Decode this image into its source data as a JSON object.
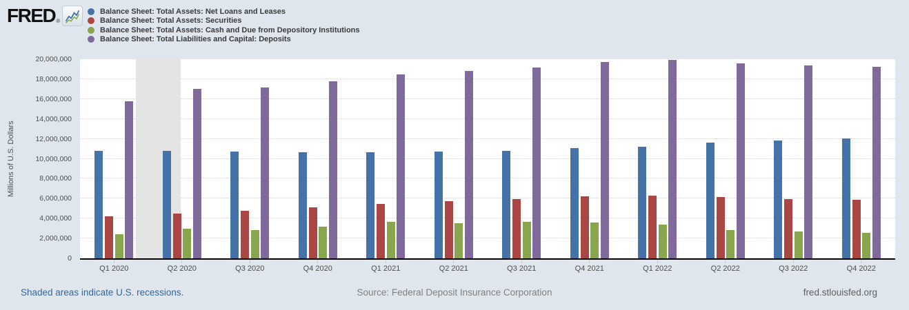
{
  "brand": {
    "logo_text": "FRED",
    "registered_mark": "®"
  },
  "colors": {
    "background": "#dfe6ed",
    "plot_background": "#ffffff",
    "recession_band": "#e4e4e4",
    "gridline": "#e6e6e6",
    "axis_line": "#000000",
    "link": "#336699"
  },
  "chart_data": {
    "type": "bar",
    "title": "",
    "xlabel": "",
    "ylabel": "Millions of U.S. Dollars",
    "ylim": [
      0,
      20000000
    ],
    "y_tick_interval": 2000000,
    "y_tick_labels": [
      "0",
      "2,000,000",
      "4,000,000",
      "6,000,000",
      "8,000,000",
      "10,000,000",
      "12,000,000",
      "14,000,000",
      "16,000,000",
      "18,000,000",
      "20,000,000"
    ],
    "grid": true,
    "legend_position": "top-left",
    "categories": [
      "Q1 2020",
      "Q2 2020",
      "Q3 2020",
      "Q4 2020",
      "Q1 2021",
      "Q2 2021",
      "Q3 2021",
      "Q4 2021",
      "Q1 2022",
      "Q2 2022",
      "Q3 2022",
      "Q4 2022"
    ],
    "series": [
      {
        "name": "Balance Sheet: Total Assets: Net Loans and Leases",
        "color": "#4572a7",
        "values": [
          10800000,
          10800000,
          10700000,
          10650000,
          10650000,
          10700000,
          10800000,
          11050000,
          11200000,
          11600000,
          11800000,
          12050000
        ]
      },
      {
        "name": "Balance Sheet: Total Assets: Securities",
        "color": "#aa4643",
        "values": [
          4200000,
          4500000,
          4750000,
          5100000,
          5450000,
          5750000,
          5950000,
          6250000,
          6300000,
          6150000,
          5950000,
          5900000
        ]
      },
      {
        "name": "Balance Sheet: Total Assets: Cash and Due from Depository Institutions",
        "color": "#89a54e",
        "values": [
          2400000,
          2950000,
          2850000,
          3200000,
          3650000,
          3500000,
          3650000,
          3600000,
          3400000,
          2850000,
          2700000,
          2550000
        ]
      },
      {
        "name": "Balance Sheet: Total Liabilities and Capital: Deposits",
        "color": "#80699b",
        "values": [
          15800000,
          17000000,
          17150000,
          17800000,
          18500000,
          18800000,
          19200000,
          19750000,
          19950000,
          19600000,
          19400000,
          19250000
        ]
      }
    ],
    "recession_shading": {
      "start_frac": 0.0685,
      "end_frac": 0.1235
    }
  },
  "footer": {
    "recession_note": "Shaded areas indicate U.S. recessions.",
    "source": "Source: Federal Deposit Insurance Corporation",
    "site": "fred.stlouisfed.org"
  }
}
